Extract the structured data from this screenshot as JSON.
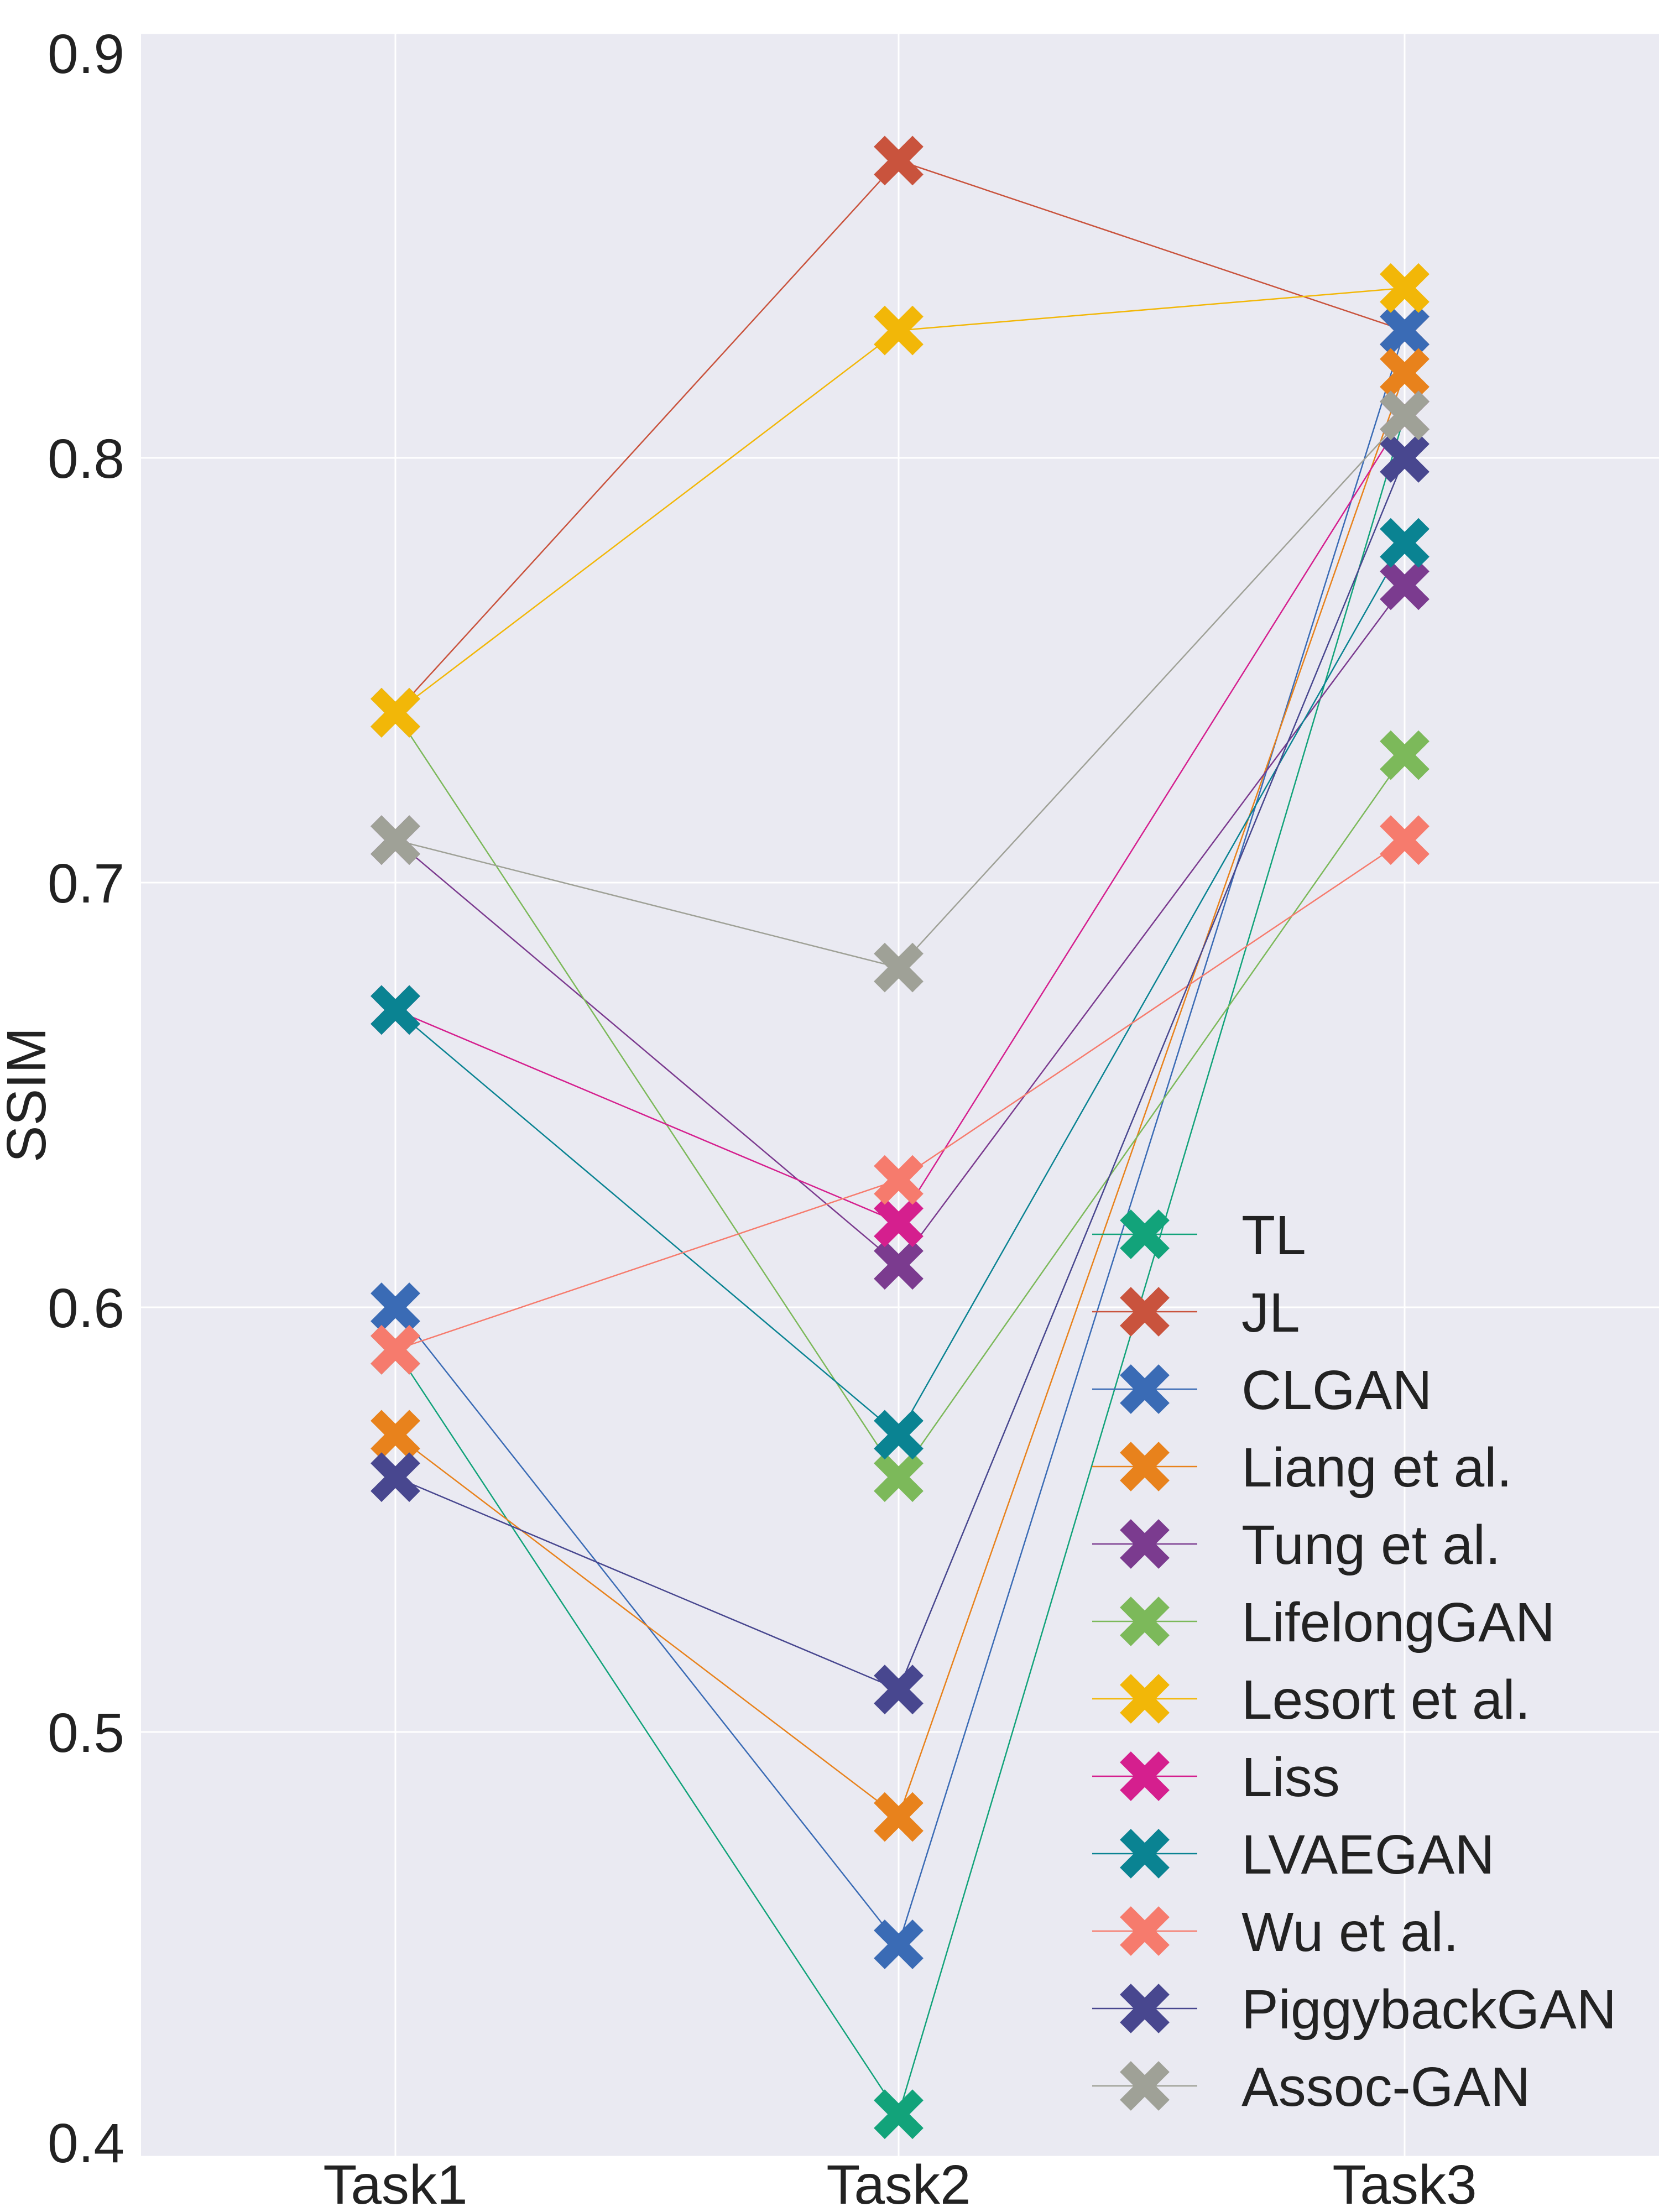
{
  "chart_data": {
    "type": "line",
    "title": "",
    "xlabel": "",
    "ylabel": "SSIM",
    "categories": [
      "Task1",
      "Task2",
      "Task3"
    ],
    "ylim": [
      0.4,
      0.9
    ],
    "yticks": [
      "0.4",
      "0.5",
      "0.6",
      "0.7",
      "0.8",
      "0.9"
    ],
    "grid": true,
    "legend_position": "bottom-right",
    "marker": "X",
    "series": [
      {
        "name": "TL",
        "color": "#12a37a",
        "values": [
          0.59,
          0.41,
          0.81
        ]
      },
      {
        "name": "JL",
        "color": "#c9533d",
        "values": [
          0.74,
          0.87,
          0.83
        ]
      },
      {
        "name": "CLGAN",
        "color": "#3a6bb5",
        "values": [
          0.6,
          0.45,
          0.83
        ]
      },
      {
        "name": "Liang et al.",
        "color": "#e8821c",
        "values": [
          0.57,
          0.48,
          0.82
        ]
      },
      {
        "name": "Tung et al.",
        "color": "#7b3b8f",
        "values": [
          0.71,
          0.61,
          0.77
        ]
      },
      {
        "name": "LifelongGAN",
        "color": "#7cb95a",
        "values": [
          0.74,
          0.56,
          0.73
        ]
      },
      {
        "name": "Lesort et al.",
        "color": "#f2b708",
        "values": [
          0.74,
          0.83,
          0.84
        ]
      },
      {
        "name": "Liss",
        "color": "#d51f8e",
        "values": [
          0.67,
          0.62,
          0.81
        ]
      },
      {
        "name": "LVAEGAN",
        "color": "#0a8392",
        "values": [
          0.67,
          0.57,
          0.78
        ]
      },
      {
        "name": "Wu et al.",
        "color": "#f67b6d",
        "values": [
          0.59,
          0.63,
          0.71
        ]
      },
      {
        "name": "PiggybackGAN",
        "color": "#48478f",
        "values": [
          0.56,
          0.51,
          0.8
        ]
      },
      {
        "name": "Assoc-GAN",
        "color": "#9fa197",
        "values": [
          0.71,
          0.68,
          0.81
        ]
      }
    ]
  }
}
